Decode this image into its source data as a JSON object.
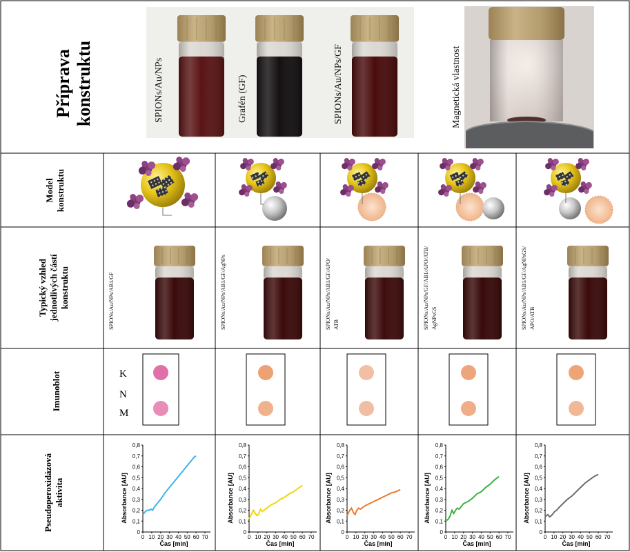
{
  "rows": {
    "priprava": [
      "Příprava",
      "konstruktu"
    ],
    "model": [
      "Model",
      "konstruktu"
    ],
    "vzhled": [
      "Typický vzhled",
      "jednotlivých částí",
      "konstruktu"
    ],
    "imunoblot": "Imunoblot",
    "pseudo": [
      "Pseudoperoxidázová",
      "aktivita"
    ]
  },
  "top_vials": [
    {
      "label": "SPIONs/Au/NPs",
      "color": "#5a1414"
    },
    {
      "label": "Grafén (GF)",
      "color": "#141012"
    },
    {
      "label": "SPIONs/Au/NPs/GF",
      "color": "#4a0c0c"
    }
  ],
  "magnetic_label": "Magnetická vlastnost",
  "columns": [
    {
      "vial_label": [
        "SPIONs/Au/NPs/AB1/GF"
      ],
      "color": "#3a0a0a"
    },
    {
      "vial_label": [
        "SPIONs/Au/NPs/AB1/GF/AgNPs"
      ],
      "color": "#3c0a0a"
    },
    {
      "vial_label": [
        "SPIONs/Au/NPs/AB1/GF/APO/",
        "ATB"
      ],
      "color": "#3d0b0b"
    },
    {
      "vial_label": [
        "SPIONs/Au/NPs/GF/AB1/APO/ATB/",
        "AgNPsGS"
      ],
      "color": "#380909"
    },
    {
      "vial_label": [
        "SPIONs/Au/NPs/AB1/GF/AgNPsGS/",
        "APO/ATB"
      ],
      "color": "#3a0a0a"
    }
  ],
  "blot": {
    "labels": [
      "K",
      "N",
      "M"
    ],
    "dot_colors": [
      [
        "#e070a8",
        "#e88cb8"
      ],
      [
        "#eca273",
        "#efb28c"
      ],
      [
        "#f2bfa5",
        "#f0bea2"
      ],
      [
        "#eda67c",
        "#efae88"
      ],
      [
        "#eda576",
        "#f0b895"
      ]
    ]
  },
  "chart_data": [
    {
      "type": "line",
      "xlabel": "Čas [min]",
      "ylabel": "Absorbance [AU]",
      "xlim": [
        0,
        70
      ],
      "ylim": [
        0,
        0.8
      ],
      "xticks": [
        "0",
        "10",
        "20",
        "30",
        "40",
        "50",
        "60",
        "70"
      ],
      "yticks": [
        "0",
        "0,1",
        "0,2",
        "0,3",
        "0,4",
        "0,5",
        "0,6",
        "0,7",
        "0,8"
      ],
      "color": "#3ab5e6",
      "x": [
        0,
        3,
        5,
        7,
        9,
        11,
        13,
        15,
        20,
        25,
        30,
        35,
        40,
        45,
        50,
        55,
        58,
        60
      ],
      "y": [
        0.16,
        0.19,
        0.2,
        0.2,
        0.21,
        0.2,
        0.23,
        0.25,
        0.3,
        0.36,
        0.41,
        0.46,
        0.51,
        0.56,
        0.61,
        0.66,
        0.69,
        0.7
      ]
    },
    {
      "type": "line",
      "xlabel": "Čas [min]",
      "ylabel": "Absorbance [AU]",
      "xlim": [
        0,
        70
      ],
      "ylim": [
        0,
        0.8
      ],
      "xticks": [
        "0",
        "10",
        "20",
        "30",
        "40",
        "50",
        "60",
        "70"
      ],
      "yticks": [
        "0",
        "0,1",
        "0,2",
        "0,3",
        "0,4",
        "0,5",
        "0,6",
        "0,7",
        "0,8"
      ],
      "color": "#f2d50a",
      "x": [
        0,
        3,
        5,
        7,
        9,
        11,
        13,
        15,
        20,
        25,
        30,
        35,
        40,
        45,
        50,
        55,
        60
      ],
      "y": [
        0.12,
        0.17,
        0.2,
        0.17,
        0.15,
        0.17,
        0.21,
        0.19,
        0.22,
        0.25,
        0.27,
        0.3,
        0.32,
        0.35,
        0.37,
        0.4,
        0.43
      ]
    },
    {
      "type": "line",
      "xlabel": "Čas [min]",
      "ylabel": "Absorbance [AU]",
      "xlim": [
        0,
        70
      ],
      "ylim": [
        0,
        0.8
      ],
      "xticks": [
        "0",
        "10",
        "20",
        "30",
        "40",
        "50",
        "60",
        "70"
      ],
      "yticks": [
        "0",
        "0,1",
        "0,2",
        "0,3",
        "0,4",
        "0,5",
        "0,6",
        "0,7",
        "0,8"
      ],
      "color": "#e87a2c",
      "x": [
        0,
        3,
        5,
        7,
        9,
        11,
        13,
        15,
        20,
        25,
        30,
        35,
        40,
        45,
        50,
        55,
        60
      ],
      "y": [
        0.15,
        0.2,
        0.22,
        0.18,
        0.16,
        0.2,
        0.22,
        0.21,
        0.24,
        0.26,
        0.28,
        0.3,
        0.32,
        0.34,
        0.36,
        0.37,
        0.39
      ]
    },
    {
      "type": "line",
      "xlabel": "Čas [min]",
      "ylabel": "Absorbance [AU]",
      "xlim": [
        0,
        70
      ],
      "ylim": [
        0,
        0.8
      ],
      "xticks": [
        "0",
        "10",
        "20",
        "30",
        "40",
        "50",
        "60",
        "70"
      ],
      "yticks": [
        "0",
        "0,1",
        "0,2",
        "0,3",
        "0,4",
        "0,5",
        "0,6",
        "0,7",
        "0,8"
      ],
      "color": "#3cb043",
      "x": [
        0,
        3,
        5,
        7,
        9,
        11,
        13,
        15,
        20,
        25,
        30,
        35,
        40,
        45,
        50,
        55,
        60
      ],
      "y": [
        0.1,
        0.12,
        0.15,
        0.2,
        0.17,
        0.2,
        0.22,
        0.21,
        0.26,
        0.28,
        0.31,
        0.35,
        0.37,
        0.41,
        0.44,
        0.48,
        0.51
      ]
    },
    {
      "type": "line",
      "xlabel": "Čas [min]",
      "ylabel": "Absorbance [AU]",
      "xlim": [
        0,
        70
      ],
      "ylim": [
        0,
        0.8
      ],
      "xticks": [
        "0",
        "10",
        "20",
        "30",
        "40",
        "50",
        "60",
        "70"
      ],
      "yticks": [
        "0",
        "0,1",
        "0,2",
        "0,3",
        "0,4",
        "0,5",
        "0,6",
        "0,7",
        "0,8"
      ],
      "color": "#6c6c6c",
      "x": [
        0,
        3,
        5,
        7,
        9,
        11,
        13,
        15,
        20,
        25,
        30,
        35,
        40,
        45,
        50,
        55,
        60
      ],
      "y": [
        0.14,
        0.16,
        0.14,
        0.15,
        0.17,
        0.19,
        0.2,
        0.22,
        0.26,
        0.3,
        0.33,
        0.37,
        0.41,
        0.45,
        0.48,
        0.51,
        0.53
      ]
    }
  ]
}
